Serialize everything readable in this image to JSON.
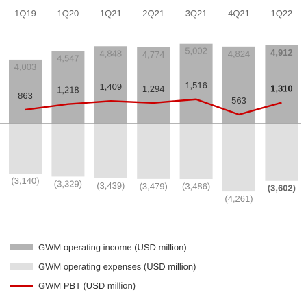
{
  "chart_data": {
    "type": "bar",
    "title": "",
    "categories": [
      "1Q19",
      "1Q20",
      "1Q21",
      "2Q21",
      "3Q21",
      "4Q21",
      "1Q22"
    ],
    "series": [
      {
        "name": "GWM operating income (USD million)",
        "kind": "bar",
        "color": "#b3b3b3",
        "values": [
          4003,
          4547,
          4848,
          4774,
          5002,
          4824,
          4912
        ],
        "labels": [
          "4,003",
          "4,547",
          "4,848",
          "4,774",
          "5,002",
          "4,824",
          "4,912"
        ]
      },
      {
        "name": "GWM operating expenses (USD million)",
        "kind": "bar",
        "color": "#e0e0e0",
        "values": [
          -3140,
          -3329,
          -3439,
          -3479,
          -3486,
          -4261,
          -3602
        ],
        "labels": [
          "(3,140)",
          "(3,329)",
          "(3,439)",
          "(3,479)",
          "(3,486)",
          "(4,261)",
          "(3,602)"
        ]
      },
      {
        "name": "GWM PBT (USD million)",
        "kind": "line",
        "color": "#cc0000",
        "values": [
          863,
          1218,
          1409,
          1294,
          1516,
          563,
          1310
        ],
        "labels": [
          "863",
          "1,218",
          "1,409",
          "1,294",
          "1,516",
          "563",
          "1,310"
        ]
      }
    ],
    "highlight_last": true,
    "ylim": [
      -4400,
      5200
    ],
    "grid": false,
    "legend_position": "bottom"
  }
}
